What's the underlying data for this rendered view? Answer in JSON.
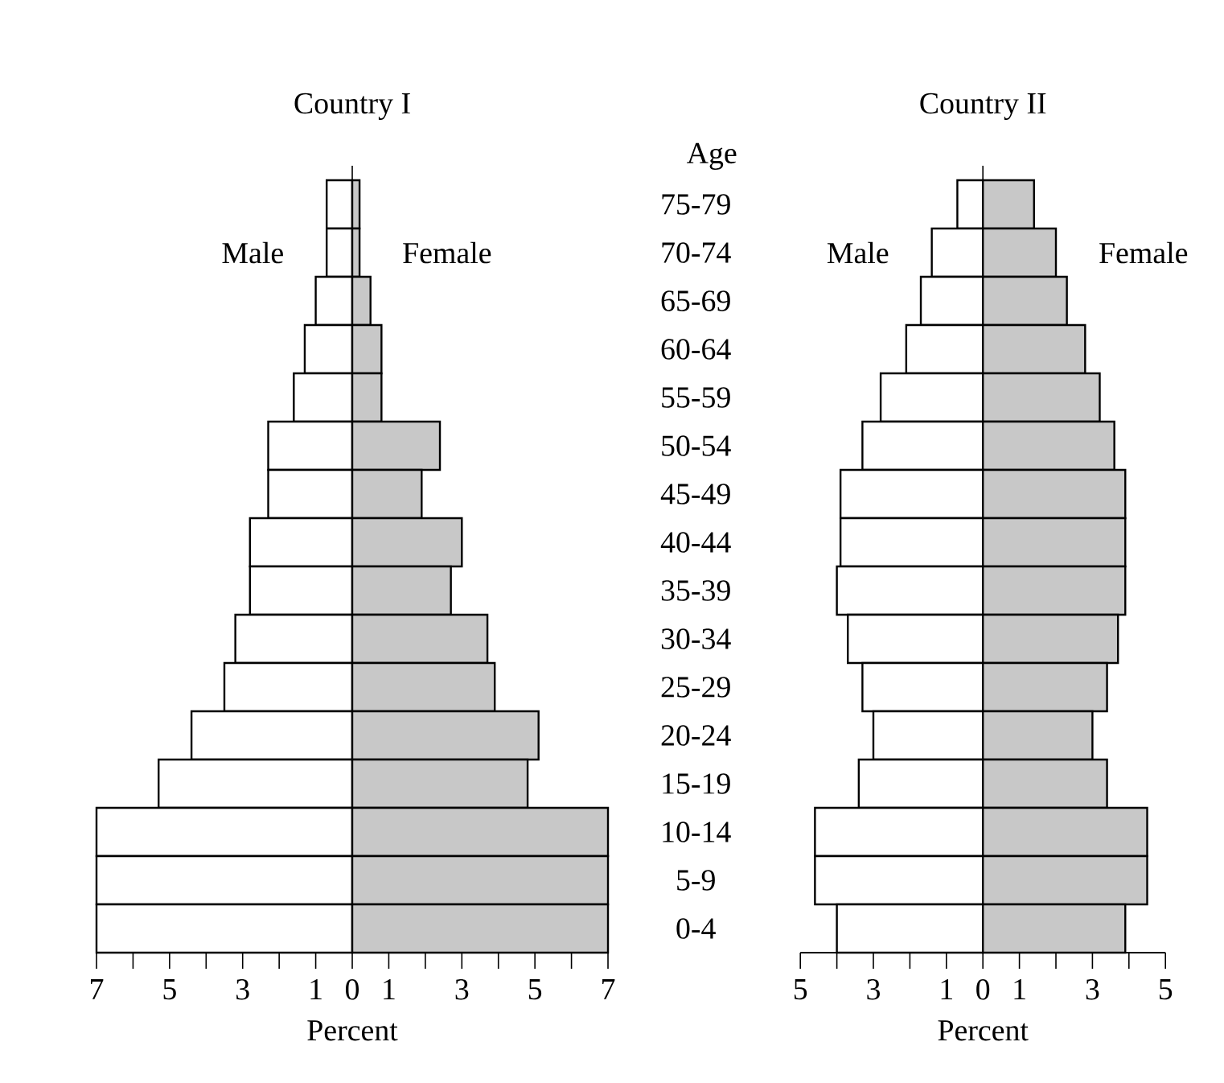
{
  "chart_data": [
    {
      "type": "bar",
      "orientation": "horizontal",
      "stacked": true,
      "title": "Country I",
      "xlabel": "Percent",
      "tick_labels": "x",
      "categories": [
        null,
        null,
        null,
        null,
        null,
        null,
        null,
        null,
        null,
        null,
        null,
        null,
        null,
        null,
        null,
        null
      ],
      "series": [
        {
          "name": "Male",
          "color": "#ffffff",
          "values": [
            -0.7,
            -0.7,
            -1.0,
            -1.3,
            -1.6,
            -2.3,
            -2.3,
            -2.8,
            -2.8,
            -3.2,
            -3.5,
            -4.4,
            -5.3,
            -7,
            -7,
            -7
          ]
        },
        {
          "name": "Female",
          "color": "#c8c8c8",
          "values": [
            0.2,
            0.2,
            0.5,
            0.8,
            0.8,
            2.4,
            1.9,
            3.0,
            2.7,
            3.7,
            3.9,
            5.1,
            4.8,
            7,
            7,
            7
          ]
        }
      ],
      "xlim": [
        -7,
        7
      ],
      "xticks": [
        {
          "value": -7,
          "label": "7"
        },
        {
          "value": -6,
          "label": null
        },
        {
          "value": -5,
          "label": "5"
        },
        {
          "value": -4,
          "label": null
        },
        {
          "value": -3,
          "label": "3"
        },
        {
          "value": -2,
          "label": null
        },
        {
          "value": -1,
          "label": "1"
        },
        {
          "value": 0,
          "label": "0"
        },
        {
          "value": 1,
          "label": "1"
        },
        {
          "value": 2,
          "label": null
        },
        {
          "value": 3,
          "label": "3"
        },
        {
          "value": 4,
          "label": null
        },
        {
          "value": 5,
          "label": "5"
        },
        {
          "value": 6,
          "label": null
        },
        {
          "value": 7,
          "label": "7"
        }
      ],
      "ref_lines": [
        {
          "axis": "x",
          "value": 0
        }
      ]
    },
    {
      "type": "bar",
      "orientation": "horizontal",
      "stacked": true,
      "title": "Country II",
      "xlabel": "Percent",
      "ylabel": "Age",
      "categories": [
        "75-79",
        "70-74",
        "65-69",
        "60-64",
        "55-59",
        "50-54",
        "45-49",
        "40-44",
        "35-39",
        "30-34",
        "25-29",
        "20-24",
        "15-19",
        "10-14",
        "5-9",
        "0-4"
      ],
      "series": [
        {
          "name": "Male",
          "color": "#ffffff",
          "values": [
            -0.7,
            -1.4,
            -1.7,
            -2.1,
            -2.8,
            -3.3,
            -3.9,
            -3.9,
            -4.0,
            -3.7,
            -3.3,
            -3.0,
            -3.4,
            -4.6,
            -4.6,
            -4.0
          ]
        },
        {
          "name": "Female",
          "color": "#c8c8c8",
          "values": [
            1.4,
            2.0,
            2.3,
            2.8,
            3.2,
            3.6,
            3.9,
            3.9,
            3.9,
            3.7,
            3.4,
            3.0,
            3.4,
            4.5,
            4.5,
            3.9
          ]
        }
      ],
      "xlim": [
        -5,
        5
      ],
      "xticks": [
        {
          "value": -5,
          "label": "5"
        },
        {
          "value": -4,
          "label": null
        },
        {
          "value": -3,
          "label": "3"
        },
        {
          "value": -2,
          "label": null
        },
        {
          "value": -1,
          "label": "1"
        },
        {
          "value": 0,
          "label": "0"
        },
        {
          "value": 1,
          "label": "1"
        },
        {
          "value": 2,
          "label": null
        },
        {
          "value": 3,
          "label": "3"
        },
        {
          "value": 4,
          "label": null
        },
        {
          "value": 5,
          "label": "5"
        }
      ],
      "ref_lines": [
        {
          "axis": "x",
          "value": 0
        }
      ]
    }
  ]
}
